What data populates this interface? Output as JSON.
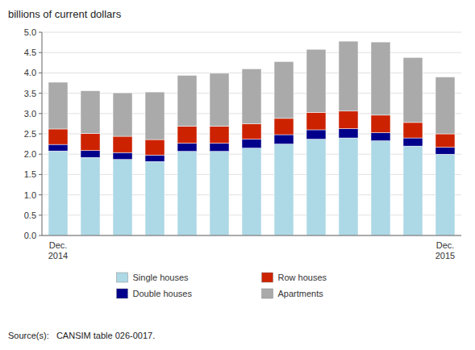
{
  "chart_data": {
    "type": "bar",
    "stacked": true,
    "title": "billions of current dollars",
    "categories": [
      "Dec.\n2014",
      null,
      null,
      null,
      null,
      null,
      null,
      null,
      null,
      null,
      null,
      null,
      "Dec.\n2015"
    ],
    "series": [
      {
        "name": "Single houses",
        "color": "#add8e6",
        "values": [
          2.08,
          1.92,
          1.87,
          1.82,
          2.07,
          2.07,
          2.15,
          2.25,
          2.37,
          2.4,
          2.33,
          2.2,
          2.0
        ]
      },
      {
        "name": "Double houses",
        "color": "#00008b",
        "values": [
          0.16,
          0.17,
          0.17,
          0.16,
          0.2,
          0.2,
          0.22,
          0.23,
          0.23,
          0.23,
          0.2,
          0.2,
          0.17
        ]
      },
      {
        "name": "Row houses",
        "color": "#cc2200",
        "values": [
          0.38,
          0.42,
          0.4,
          0.38,
          0.42,
          0.42,
          0.38,
          0.4,
          0.43,
          0.43,
          0.43,
          0.38,
          0.33
        ]
      },
      {
        "name": "Apartments",
        "color": "#aaaaaa",
        "values": [
          1.15,
          1.05,
          1.07,
          1.17,
          1.25,
          1.3,
          1.35,
          1.4,
          1.55,
          1.72,
          1.8,
          1.6,
          1.4
        ]
      }
    ],
    "ylim": [
      0,
      5.0
    ],
    "yticks": [
      {
        "value": 0.0,
        "label": "0.0"
      },
      0.5,
      {
        "value": 1.0,
        "label": "1.0"
      },
      1.5,
      {
        "value": 2.0,
        "label": "2.0"
      },
      2.5,
      {
        "value": 3.0,
        "label": "3.0"
      },
      3.5,
      {
        "value": 4.0,
        "label": "4.0"
      },
      4.5,
      {
        "value": 5.0,
        "label": "5.0"
      }
    ],
    "grid": true,
    "legend": "bottom",
    "annotations": [
      "Source(s):   CANSIM table 026-0017."
    ]
  }
}
